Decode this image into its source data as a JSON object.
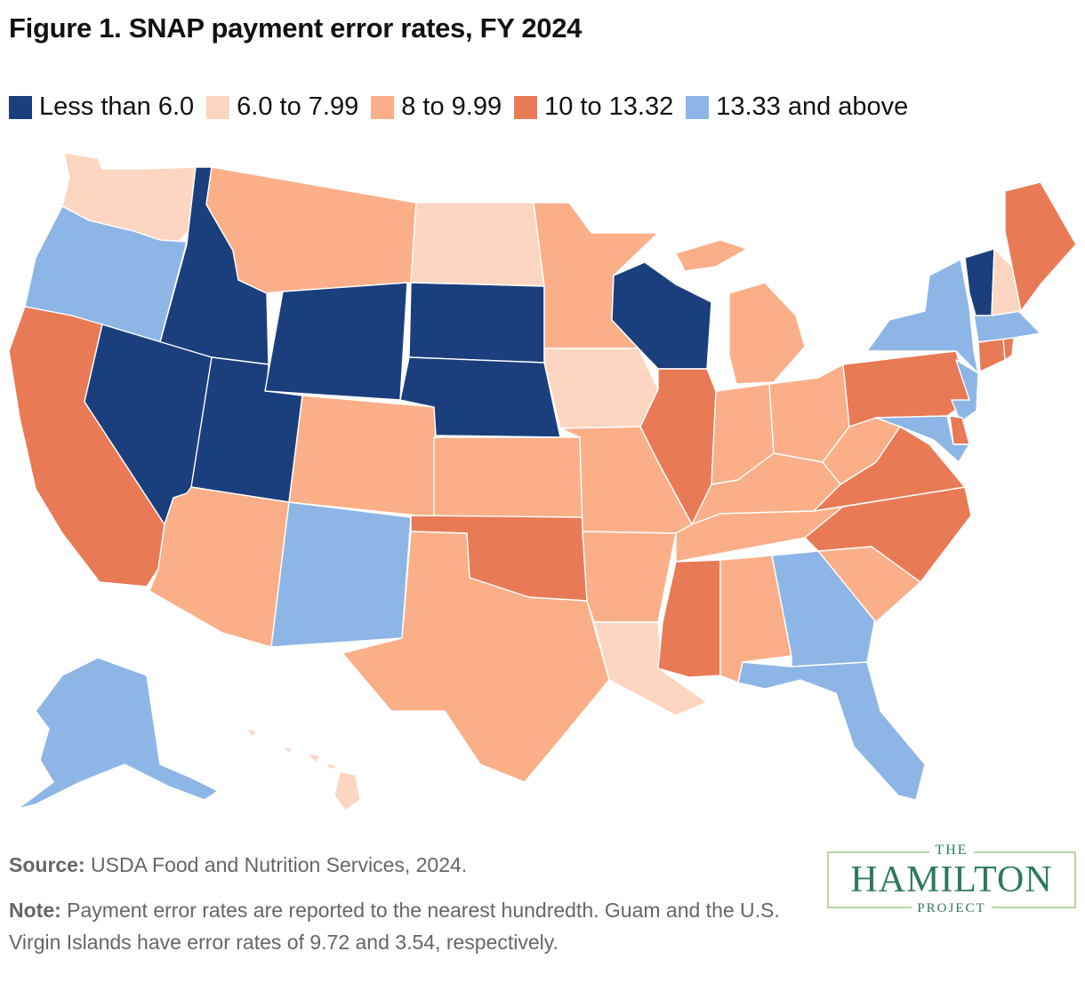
{
  "title": "Figure 1. SNAP payment error rates, FY 2024",
  "legend": [
    {
      "label": "Less than 6.0",
      "color": "#1b3f7d"
    },
    {
      "label": "6.0 to 7.99",
      "color": "#fcd6c0"
    },
    {
      "label": "8 to 9.99",
      "color": "#fbaf88"
    },
    {
      "label": "10 to 13.32",
      "color": "#e97a56"
    },
    {
      "label": "13.33 and above",
      "color": "#8db6e6"
    }
  ],
  "map": {
    "states": [
      {
        "abbr": "WA",
        "bin": 1
      },
      {
        "abbr": "OR",
        "bin": 4
      },
      {
        "abbr": "CA",
        "bin": 3
      },
      {
        "abbr": "ID",
        "bin": 0
      },
      {
        "abbr": "NV",
        "bin": 0
      },
      {
        "abbr": "UT",
        "bin": 0
      },
      {
        "abbr": "AZ",
        "bin": 2
      },
      {
        "abbr": "MT",
        "bin": 2
      },
      {
        "abbr": "WY",
        "bin": 0
      },
      {
        "abbr": "CO",
        "bin": 2
      },
      {
        "abbr": "NM",
        "bin": 4
      },
      {
        "abbr": "ND",
        "bin": 1
      },
      {
        "abbr": "SD",
        "bin": 0
      },
      {
        "abbr": "NE",
        "bin": 0
      },
      {
        "abbr": "KS",
        "bin": 2
      },
      {
        "abbr": "OK",
        "bin": 3
      },
      {
        "abbr": "TX",
        "bin": 2
      },
      {
        "abbr": "MN",
        "bin": 2
      },
      {
        "abbr": "IA",
        "bin": 1
      },
      {
        "abbr": "MO",
        "bin": 2
      },
      {
        "abbr": "AR",
        "bin": 2
      },
      {
        "abbr": "LA",
        "bin": 1
      },
      {
        "abbr": "WI",
        "bin": 0
      },
      {
        "abbr": "IL",
        "bin": 3
      },
      {
        "abbr": "MI",
        "bin": 2
      },
      {
        "abbr": "IN",
        "bin": 2
      },
      {
        "abbr": "OH",
        "bin": 2
      },
      {
        "abbr": "KY",
        "bin": 2
      },
      {
        "abbr": "TN",
        "bin": 2
      },
      {
        "abbr": "MS",
        "bin": 3
      },
      {
        "abbr": "AL",
        "bin": 2
      },
      {
        "abbr": "GA",
        "bin": 4
      },
      {
        "abbr": "FL",
        "bin": 4
      },
      {
        "abbr": "SC",
        "bin": 2
      },
      {
        "abbr": "NC",
        "bin": 3
      },
      {
        "abbr": "VA",
        "bin": 3
      },
      {
        "abbr": "WV",
        "bin": 2
      },
      {
        "abbr": "PA",
        "bin": 3
      },
      {
        "abbr": "NY",
        "bin": 4
      },
      {
        "abbr": "NJ",
        "bin": 4
      },
      {
        "abbr": "DE",
        "bin": 3
      },
      {
        "abbr": "MD",
        "bin": 4
      },
      {
        "abbr": "CT",
        "bin": 3
      },
      {
        "abbr": "RI",
        "bin": 3
      },
      {
        "abbr": "MA",
        "bin": 4
      },
      {
        "abbr": "VT",
        "bin": 0
      },
      {
        "abbr": "NH",
        "bin": 1
      },
      {
        "abbr": "ME",
        "bin": 3
      },
      {
        "abbr": "AK",
        "bin": 4
      },
      {
        "abbr": "HI",
        "bin": 1
      }
    ]
  },
  "source": {
    "label": "Source:",
    "text": " USDA Food and Nutrition Services, 2024."
  },
  "note": {
    "label": "Note:",
    "text": " Payment error rates are reported to the nearest hundredth. Guam and the U.S. Virgin Islands have error rates of 9.72 and 3.54, respectively."
  },
  "logo": {
    "line1": "THE",
    "line2": "HAMILTON",
    "line3": "PROJECT"
  }
}
